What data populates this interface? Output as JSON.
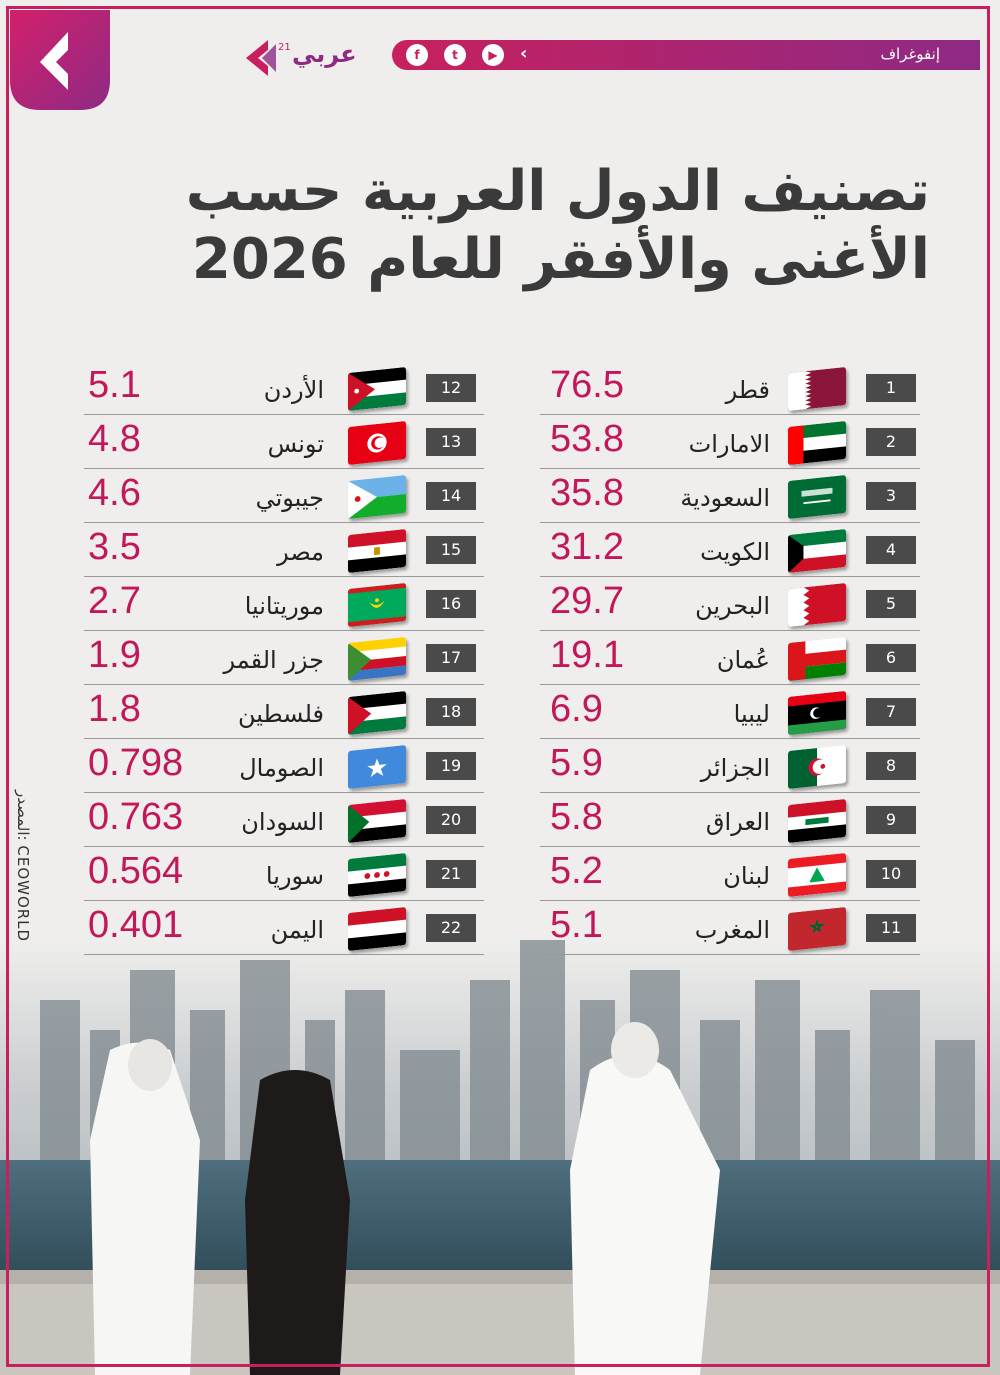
{
  "header": {
    "section_label": "إنفوغراف",
    "brand_word": "عربي",
    "brand_sup": "21",
    "social_icons": [
      "facebook-icon",
      "twitter-icon",
      "youtube-icon",
      "arabi21-icon"
    ]
  },
  "title": {
    "line1": "تصنيف الدول العربية حسب",
    "line2": "الأغنى والأفقر للعام 2026"
  },
  "source": "المصدر: CEOWORLD",
  "colors": {
    "accent": "#c2185b",
    "purple": "#8e2a84",
    "rank_bg": "#4a4a4a"
  },
  "right_column": [
    {
      "rank": "1",
      "name": "قطر",
      "value": "76.5",
      "flag": "qatar-flag-icon"
    },
    {
      "rank": "2",
      "name": "الامارات",
      "value": "53.8",
      "flag": "uae-flag-icon"
    },
    {
      "rank": "3",
      "name": "السعودية",
      "value": "35.8",
      "flag": "saudi-flag-icon"
    },
    {
      "rank": "4",
      "name": "الكويت",
      "value": "31.2",
      "flag": "kuwait-flag-icon"
    },
    {
      "rank": "5",
      "name": "البحرين",
      "value": "29.7",
      "flag": "bahrain-flag-icon"
    },
    {
      "rank": "6",
      "name": "عُمان",
      "value": "19.1",
      "flag": "oman-flag-icon"
    },
    {
      "rank": "7",
      "name": "ليبيا",
      "value": "6.9",
      "flag": "libya-flag-icon"
    },
    {
      "rank": "8",
      "name": "الجزائر",
      "value": "5.9",
      "flag": "algeria-flag-icon"
    },
    {
      "rank": "9",
      "name": "العراق",
      "value": "5.8",
      "flag": "iraq-flag-icon"
    },
    {
      "rank": "10",
      "name": "لبنان",
      "value": "5.2",
      "flag": "lebanon-flag-icon"
    },
    {
      "rank": "11",
      "name": "المغرب",
      "value": "5.1",
      "flag": "morocco-flag-icon"
    }
  ],
  "left_column": [
    {
      "rank": "12",
      "name": "الأردن",
      "value": "5.1",
      "flag": "jordan-flag-icon"
    },
    {
      "rank": "13",
      "name": "تونس",
      "value": "4.8",
      "flag": "tunisia-flag-icon"
    },
    {
      "rank": "14",
      "name": "جيبوتي",
      "value": "4.6",
      "flag": "djibouti-flag-icon"
    },
    {
      "rank": "15",
      "name": "مصر",
      "value": "3.5",
      "flag": "egypt-flag-icon"
    },
    {
      "rank": "16",
      "name": "موريتانيا",
      "value": "2.7",
      "flag": "mauritania-flag-icon"
    },
    {
      "rank": "17",
      "name": "جزر القمر",
      "value": "1.9",
      "flag": "comoros-flag-icon"
    },
    {
      "rank": "18",
      "name": "فلسطين",
      "value": "1.8",
      "flag": "palestine-flag-icon"
    },
    {
      "rank": "19",
      "name": "الصومال",
      "value": "0.798",
      "flag": "somalia-flag-icon"
    },
    {
      "rank": "20",
      "name": "السودان",
      "value": "0.763",
      "flag": "sudan-flag-icon"
    },
    {
      "rank": "21",
      "name": "سوريا",
      "value": "0.564",
      "flag": "syria-flag-icon"
    },
    {
      "rank": "22",
      "name": "اليمن",
      "value": "0.401",
      "flag": "yemen-flag-icon"
    }
  ]
}
